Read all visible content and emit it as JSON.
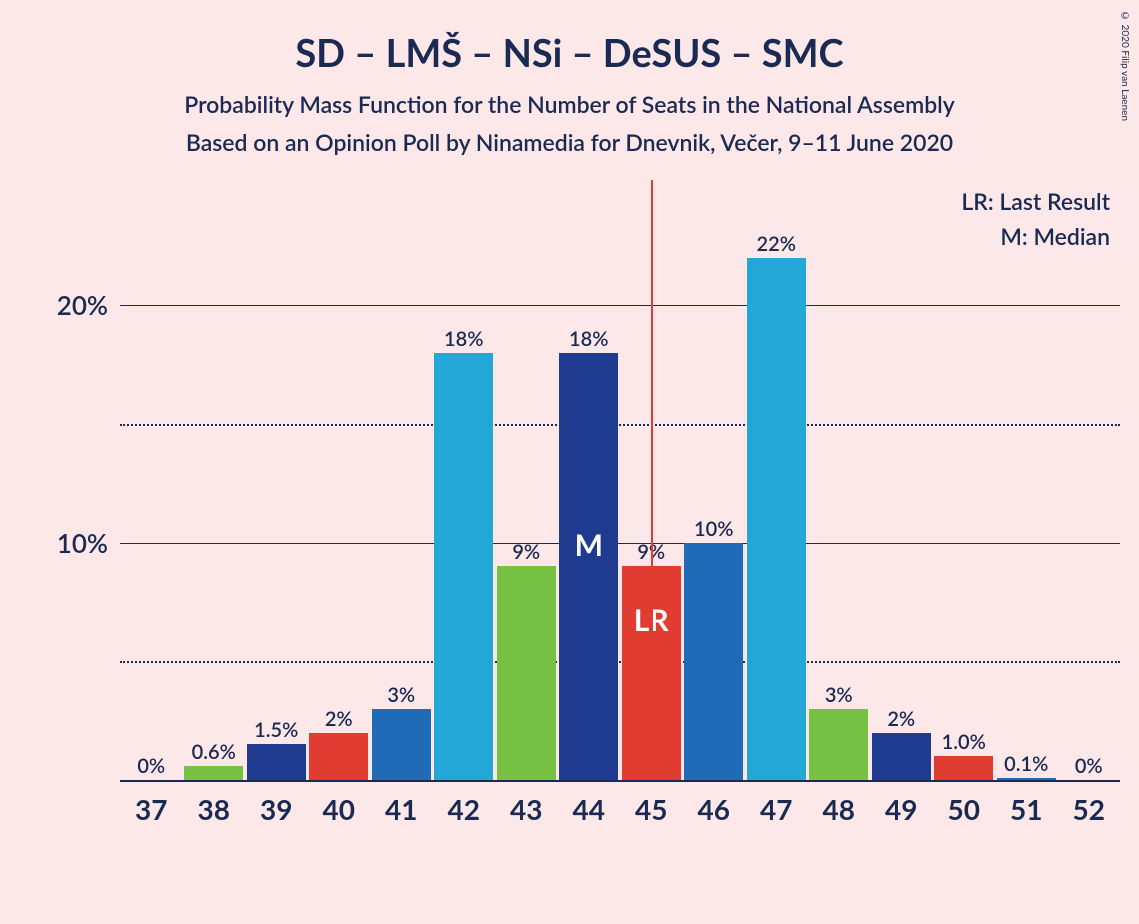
{
  "title": "SD – LMŠ – NSi – DeSUS – SMC",
  "subtitle1": "Probability Mass Function for the Number of Seats in the National Assembly",
  "subtitle2": "Based on an Opinion Poll by Ninamedia for Dnevnik, Večer, 9–11 June 2020",
  "legend": {
    "lr": "LR: Last Result",
    "m": "M: Median"
  },
  "copyright": "© 2020 Filip van Laenen",
  "chart": {
    "type": "bar",
    "background_color": "#fce8e8",
    "text_color": "#1a2a52",
    "title_fontsize": 38,
    "subtitle_fontsize": 23,
    "axis_label_fontsize": 28,
    "bar_label_fontsize": 20,
    "ylim": [
      0,
      24
    ],
    "y_major_ticks": [
      10,
      20
    ],
    "y_minor_ticks": [
      5,
      15
    ],
    "y_tick_labels": [
      "10%",
      "20%"
    ],
    "x_categories": [
      "37",
      "38",
      "39",
      "40",
      "41",
      "42",
      "43",
      "44",
      "45",
      "46",
      "47",
      "48",
      "49",
      "50",
      "51",
      "52"
    ],
    "lr_line_x_position": 8.5,
    "bars": [
      {
        "x": "37",
        "value": 0,
        "label": "0%",
        "color": "#22a7d6",
        "inner": null
      },
      {
        "x": "38",
        "value": 0.6,
        "label": "0.6%",
        "color": "#76c043",
        "inner": null
      },
      {
        "x": "39",
        "value": 1.5,
        "label": "1.5%",
        "color": "#1f3b8f",
        "inner": null
      },
      {
        "x": "40",
        "value": 2,
        "label": "2%",
        "color": "#e03c31",
        "inner": null
      },
      {
        "x": "41",
        "value": 3,
        "label": "3%",
        "color": "#1f6bb8",
        "inner": null
      },
      {
        "x": "42",
        "value": 18,
        "label": "18%",
        "color": "#22a7d6",
        "inner": null
      },
      {
        "x": "43",
        "value": 9,
        "label": "9%",
        "color": "#76c043",
        "inner": null
      },
      {
        "x": "44",
        "value": 18,
        "label": "18%",
        "color": "#1f3b8f",
        "inner": "M"
      },
      {
        "x": "45",
        "value": 9,
        "label": "9%",
        "color": "#e03c31",
        "inner": "LR"
      },
      {
        "x": "46",
        "value": 10,
        "label": "10%",
        "color": "#1f6bb8",
        "inner": null
      },
      {
        "x": "47",
        "value": 22,
        "label": "22%",
        "color": "#22a7d6",
        "inner": null
      },
      {
        "x": "48",
        "value": 3,
        "label": "3%",
        "color": "#76c043",
        "inner": null
      },
      {
        "x": "49",
        "value": 2,
        "label": "2%",
        "color": "#1f3b8f",
        "inner": null
      },
      {
        "x": "50",
        "value": 1.0,
        "label": "1.0%",
        "color": "#e03c31",
        "inner": null
      },
      {
        "x": "51",
        "value": 0.1,
        "label": "0.1%",
        "color": "#1f6bb8",
        "inner": null
      },
      {
        "x": "52",
        "value": 0,
        "label": "0%",
        "color": "#22a7d6",
        "inner": null
      }
    ]
  }
}
